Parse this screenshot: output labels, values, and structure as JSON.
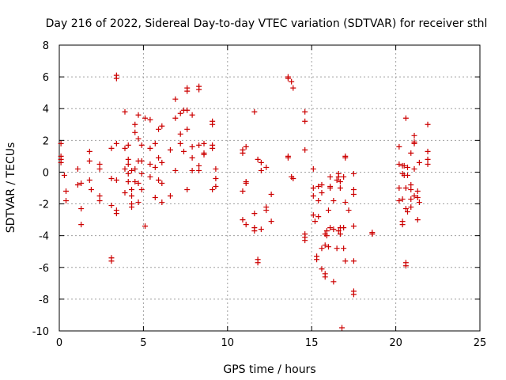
{
  "chart_data": {
    "type": "scatter",
    "title": "Day 216 of 2022, Sidereal Day-to-day VTEC variation (SDTVAR) for receiver sthl",
    "xlabel": "GPS time / hours",
    "ylabel": "SDTVAR / TECUs",
    "xlim": [
      0,
      25
    ],
    "ylim": [
      -10,
      8
    ],
    "xticks": [
      0,
      5,
      10,
      15,
      20,
      25
    ],
    "yticks": [
      -10,
      -8,
      -6,
      -4,
      -2,
      0,
      2,
      4,
      6,
      8
    ],
    "grid": true,
    "marker": "plus",
    "color": "#cc0000",
    "points": [
      [
        0.1,
        1.8
      ],
      [
        0.1,
        1.0
      ],
      [
        0.1,
        0.8
      ],
      [
        0.1,
        0.6
      ],
      [
        0.3,
        -0.2
      ],
      [
        0.4,
        -1.2
      ],
      [
        0.4,
        -1.8
      ],
      [
        1.1,
        0.2
      ],
      [
        1.1,
        -0.8
      ],
      [
        1.3,
        -0.7
      ],
      [
        1.3,
        -2.3
      ],
      [
        1.3,
        -3.3
      ],
      [
        1.8,
        1.3
      ],
      [
        1.8,
        0.7
      ],
      [
        1.8,
        -0.5
      ],
      [
        1.9,
        -1.1
      ],
      [
        2.4,
        0.5
      ],
      [
        2.4,
        0.2
      ],
      [
        2.4,
        -1.5
      ],
      [
        2.4,
        -1.8
      ],
      [
        3.1,
        1.5
      ],
      [
        3.1,
        -0.4
      ],
      [
        3.1,
        -2.1
      ],
      [
        3.1,
        -5.4
      ],
      [
        3.1,
        -5.6
      ],
      [
        3.4,
        6.1
      ],
      [
        3.4,
        5.9
      ],
      [
        3.4,
        1.8
      ],
      [
        3.4,
        -0.5
      ],
      [
        3.4,
        -2.4
      ],
      [
        3.4,
        -2.6
      ],
      [
        3.9,
        3.8
      ],
      [
        3.9,
        1.5
      ],
      [
        3.9,
        0.2
      ],
      [
        3.9,
        -1.3
      ],
      [
        4.1,
        1.7
      ],
      [
        4.1,
        0.8
      ],
      [
        4.1,
        0.5
      ],
      [
        4.1,
        -0.1
      ],
      [
        4.1,
        -0.6
      ],
      [
        4.3,
        0.1
      ],
      [
        4.3,
        -1.1
      ],
      [
        4.3,
        -1.5
      ],
      [
        4.3,
        -2.0
      ],
      [
        4.3,
        -2.2
      ],
      [
        4.5,
        3.0
      ],
      [
        4.5,
        2.5
      ],
      [
        4.5,
        0.2
      ],
      [
        4.5,
        -0.6
      ],
      [
        4.7,
        3.6
      ],
      [
        4.7,
        2.1
      ],
      [
        4.7,
        0.7
      ],
      [
        4.7,
        -0.7
      ],
      [
        4.7,
        -1.9
      ],
      [
        4.9,
        1.7
      ],
      [
        4.9,
        0.7
      ],
      [
        4.9,
        -0.1
      ],
      [
        4.9,
        -1.1
      ],
      [
        5.1,
        3.4
      ],
      [
        5.1,
        -3.4
      ],
      [
        5.4,
        3.3
      ],
      [
        5.4,
        1.5
      ],
      [
        5.4,
        0.5
      ],
      [
        5.4,
        -0.3
      ],
      [
        5.7,
        1.8
      ],
      [
        5.7,
        0.3
      ],
      [
        5.7,
        -1.6
      ],
      [
        5.9,
        2.7
      ],
      [
        5.9,
        0.9
      ],
      [
        5.9,
        -0.5
      ],
      [
        6.1,
        2.9
      ],
      [
        6.1,
        0.6
      ],
      [
        6.1,
        -0.7
      ],
      [
        6.1,
        -1.9
      ],
      [
        6.6,
        1.4
      ],
      [
        6.6,
        -1.5
      ],
      [
        6.9,
        4.6
      ],
      [
        6.9,
        3.4
      ],
      [
        6.9,
        0.1
      ],
      [
        7.2,
        3.7
      ],
      [
        7.2,
        2.4
      ],
      [
        7.2,
        1.8
      ],
      [
        7.4,
        3.9
      ],
      [
        7.4,
        1.3
      ],
      [
        7.6,
        5.3
      ],
      [
        7.6,
        5.1
      ],
      [
        7.6,
        3.9
      ],
      [
        7.6,
        2.7
      ],
      [
        7.6,
        -1.1
      ],
      [
        7.9,
        3.6
      ],
      [
        7.9,
        1.6
      ],
      [
        7.9,
        0.9
      ],
      [
        7.9,
        0.1
      ],
      [
        8.3,
        5.4
      ],
      [
        8.3,
        5.2
      ],
      [
        8.3,
        1.7
      ],
      [
        8.3,
        0.4
      ],
      [
        8.3,
        0.1
      ],
      [
        8.6,
        1.8
      ],
      [
        8.6,
        1.2
      ],
      [
        8.6,
        1.1
      ],
      [
        9.1,
        3.2
      ],
      [
        9.1,
        3.0
      ],
      [
        9.1,
        1.7
      ],
      [
        9.1,
        1.5
      ],
      [
        9.1,
        -1.1
      ],
      [
        9.3,
        0.2
      ],
      [
        9.3,
        -0.9
      ],
      [
        9.3,
        -0.4
      ],
      [
        10.9,
        1.4
      ],
      [
        10.9,
        1.2
      ],
      [
        10.9,
        -1.2
      ],
      [
        10.9,
        -3.0
      ],
      [
        11.1,
        1.6
      ],
      [
        11.1,
        -0.7
      ],
      [
        11.1,
        -0.6
      ],
      [
        11.1,
        -3.3
      ],
      [
        11.6,
        3.8
      ],
      [
        11.6,
        -2.6
      ],
      [
        11.6,
        -3.5
      ],
      [
        11.6,
        -3.7
      ],
      [
        11.8,
        0.8
      ],
      [
        11.8,
        -5.5
      ],
      [
        11.8,
        -5.7
      ],
      [
        12.0,
        0.6
      ],
      [
        12.0,
        0.1
      ],
      [
        12.0,
        -3.6
      ],
      [
        12.3,
        0.3
      ],
      [
        12.3,
        -2.4
      ],
      [
        12.3,
        -2.2
      ],
      [
        12.6,
        -1.4
      ],
      [
        12.6,
        -3.1
      ],
      [
        13.6,
        6.0
      ],
      [
        13.6,
        5.9
      ],
      [
        13.6,
        1.0
      ],
      [
        13.6,
        0.9
      ],
      [
        13.8,
        5.7
      ],
      [
        13.8,
        -0.3
      ],
      [
        13.9,
        5.3
      ],
      [
        13.9,
        -0.4
      ],
      [
        14.6,
        3.8
      ],
      [
        14.6,
        3.2
      ],
      [
        14.6,
        1.4
      ],
      [
        14.6,
        -3.9
      ],
      [
        14.6,
        -4.1
      ],
      [
        14.6,
        -4.3
      ],
      [
        15.1,
        0.2
      ],
      [
        15.1,
        -1.0
      ],
      [
        15.1,
        -1.5
      ],
      [
        15.1,
        -2.7
      ],
      [
        15.2,
        -3.1
      ],
      [
        15.3,
        -5.3
      ],
      [
        15.3,
        -5.5
      ],
      [
        15.4,
        -0.9
      ],
      [
        15.4,
        -1.8
      ],
      [
        15.4,
        -2.8
      ],
      [
        15.6,
        -0.8
      ],
      [
        15.6,
        -1.3
      ],
      [
        15.6,
        -4.8
      ],
      [
        15.6,
        -6.1
      ],
      [
        15.8,
        -3.9
      ],
      [
        15.8,
        -4.6
      ],
      [
        15.8,
        -6.4
      ],
      [
        15.8,
        -6.6
      ],
      [
        15.9,
        -3.7
      ],
      [
        15.9,
        -4.0
      ],
      [
        16.0,
        -2.4
      ],
      [
        16.0,
        -4.7
      ],
      [
        16.1,
        -0.3
      ],
      [
        16.1,
        -0.9
      ],
      [
        16.1,
        -1.0
      ],
      [
        16.1,
        -3.5
      ],
      [
        16.3,
        -1.8
      ],
      [
        16.3,
        -3.6
      ],
      [
        16.3,
        -6.9
      ],
      [
        16.5,
        -0.5
      ],
      [
        16.5,
        -4.8
      ],
      [
        16.6,
        -0.1
      ],
      [
        16.6,
        -0.3
      ],
      [
        16.6,
        -3.7
      ],
      [
        16.7,
        -0.6
      ],
      [
        16.7,
        -1.0
      ],
      [
        16.7,
        -3.5
      ],
      [
        16.7,
        -3.9
      ],
      [
        16.8,
        -9.8
      ],
      [
        16.9,
        -0.3
      ],
      [
        16.9,
        -3.5
      ],
      [
        16.9,
        -4.8
      ],
      [
        17.0,
        1.0
      ],
      [
        17.0,
        0.9
      ],
      [
        17.0,
        -1.9
      ],
      [
        17.0,
        -5.6
      ],
      [
        17.2,
        -2.4
      ],
      [
        17.5,
        -0.1
      ],
      [
        17.5,
        -1.1
      ],
      [
        17.5,
        -1.4
      ],
      [
        17.5,
        -3.4
      ],
      [
        17.5,
        -5.6
      ],
      [
        17.5,
        -7.5
      ],
      [
        17.5,
        -7.7
      ],
      [
        18.6,
        -3.8
      ],
      [
        18.6,
        -3.9
      ],
      [
        20.2,
        1.6
      ],
      [
        20.2,
        0.5
      ],
      [
        20.2,
        -1.0
      ],
      [
        20.2,
        -1.8
      ],
      [
        20.4,
        0.4
      ],
      [
        20.4,
        -0.1
      ],
      [
        20.4,
        -1.7
      ],
      [
        20.4,
        -3.1
      ],
      [
        20.4,
        -3.3
      ],
      [
        20.5,
        0.4
      ],
      [
        20.5,
        -0.2
      ],
      [
        20.6,
        3.4
      ],
      [
        20.6,
        -1.0
      ],
      [
        20.6,
        -2.3
      ],
      [
        20.6,
        -5.7
      ],
      [
        20.6,
        -5.9
      ],
      [
        20.7,
        0.3
      ],
      [
        20.7,
        -0.2
      ],
      [
        20.7,
        -2.5
      ],
      [
        20.9,
        1.2
      ],
      [
        20.9,
        -0.8
      ],
      [
        20.9,
        -1.1
      ],
      [
        20.9,
        -1.7
      ],
      [
        20.9,
        -2.2
      ],
      [
        21.1,
        2.3
      ],
      [
        21.1,
        1.9
      ],
      [
        21.1,
        1.8
      ],
      [
        21.1,
        0.2
      ],
      [
        21.1,
        -1.5
      ],
      [
        21.3,
        -1.2
      ],
      [
        21.3,
        -1.6
      ],
      [
        21.3,
        -3.0
      ],
      [
        21.4,
        0.6
      ],
      [
        21.4,
        -1.9
      ],
      [
        21.9,
        3.0
      ],
      [
        21.9,
        1.3
      ],
      [
        21.9,
        0.8
      ],
      [
        21.9,
        0.5
      ]
    ]
  }
}
